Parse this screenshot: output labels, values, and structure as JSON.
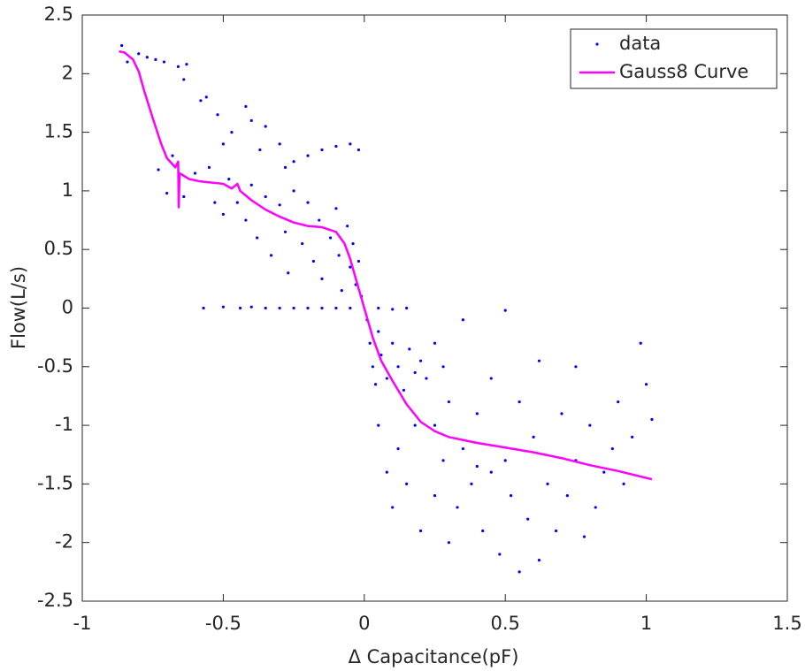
{
  "chart_data": {
    "type": "scatter",
    "xlabel": "Δ Capacitance(pF)",
    "ylabel": "Flow(L/s)",
    "xlim": [
      -1,
      1.5
    ],
    "xticks": [
      -1,
      -0.5,
      0,
      0.5,
      1,
      1.5
    ],
    "ylim": [
      -2.5,
      2.5
    ],
    "yticks": [
      -2.5,
      -2,
      -1.5,
      -1,
      -0.5,
      0,
      0.5,
      1,
      1.5,
      2,
      2.5
    ],
    "legend": "northeast",
    "series": [
      {
        "name": "data",
        "type": "scatter",
        "color": "#0000ff",
        "x": [
          -0.86,
          -0.84,
          -0.8,
          -0.77,
          -0.74,
          -0.71,
          -0.66,
          -0.63,
          -0.64,
          -0.58,
          -0.56,
          -0.52,
          -0.5,
          -0.47,
          -0.42,
          -0.4,
          -0.37,
          -0.35,
          -0.3,
          -0.28,
          -0.25,
          -0.2,
          -0.15,
          -0.1,
          -0.05,
          -0.02,
          -0.73,
          -0.7,
          -0.68,
          -0.64,
          -0.6,
          -0.55,
          -0.53,
          -0.5,
          -0.48,
          -0.45,
          -0.42,
          -0.4,
          -0.38,
          -0.35,
          -0.33,
          -0.3,
          -0.28,
          -0.27,
          -0.25,
          -0.22,
          -0.2,
          -0.18,
          -0.16,
          -0.15,
          -0.12,
          -0.1,
          -0.09,
          -0.08,
          -0.06,
          -0.05,
          -0.04,
          -0.03,
          -0.02,
          -0.01,
          -0.57,
          -0.5,
          -0.44,
          -0.4,
          -0.35,
          -0.3,
          -0.25,
          -0.2,
          -0.15,
          -0.1,
          -0.05,
          0.05,
          0.1,
          0.15,
          0.01,
          0.02,
          0.03,
          0.04,
          0.05,
          0.06,
          0.08,
          0.1,
          0.12,
          0.14,
          0.16,
          0.18,
          0.2,
          0.22,
          0.25,
          0.28,
          0.3,
          0.05,
          0.08,
          0.1,
          0.12,
          0.15,
          0.18,
          0.2,
          0.25,
          0.28,
          0.3,
          0.33,
          0.35,
          0.38,
          0.4,
          0.42,
          0.45,
          0.48,
          0.5,
          0.52,
          0.55,
          0.58,
          0.6,
          0.62,
          0.65,
          0.68,
          0.7,
          0.72,
          0.75,
          0.78,
          0.8,
          0.82,
          0.85,
          0.88,
          0.9,
          0.92,
          0.95,
          0.98,
          1.0,
          1.02,
          0.45,
          0.55,
          0.5,
          0.35,
          0.25,
          0.4,
          0.62,
          0.75
        ],
        "values": [
          2.24,
          2.1,
          2.17,
          2.14,
          2.12,
          2.1,
          2.06,
          2.08,
          1.95,
          1.77,
          1.8,
          1.65,
          1.4,
          1.5,
          1.72,
          1.6,
          1.35,
          1.55,
          1.4,
          1.2,
          1.25,
          1.3,
          1.35,
          1.38,
          1.4,
          1.35,
          1.18,
          0.98,
          1.3,
          0.95,
          1.15,
          1.2,
          0.9,
          0.8,
          1.1,
          0.9,
          0.75,
          1.05,
          0.6,
          0.95,
          0.45,
          0.88,
          0.65,
          0.3,
          1.0,
          0.55,
          0.9,
          0.4,
          0.75,
          0.25,
          0.6,
          0.85,
          0.45,
          0.15,
          0.7,
          0.35,
          0.55,
          0.2,
          0.4,
          0.1,
          0,
          0.01,
          0,
          0.01,
          0,
          0,
          0,
          0,
          0,
          0,
          0,
          0,
          -0.01,
          0,
          -0.1,
          -0.3,
          -0.5,
          -0.65,
          -0.2,
          -0.4,
          -0.6,
          -0.3,
          -0.5,
          -0.7,
          -0.35,
          -0.55,
          -0.45,
          -0.6,
          -0.3,
          -0.5,
          -0.8,
          -1.0,
          -1.4,
          -1.7,
          -1.2,
          -1.5,
          -1.0,
          -1.9,
          -1.6,
          -1.3,
          -2.0,
          -1.7,
          -1.2,
          -1.5,
          -1.35,
          -1.9,
          -1.4,
          -2.1,
          -1.3,
          -1.6,
          -2.25,
          -1.8,
          -1.1,
          -2.15,
          -1.5,
          -1.9,
          -0.9,
          -1.6,
          -1.3,
          -1.95,
          -1.0,
          -1.7,
          -1.4,
          -1.2,
          -0.8,
          -1.5,
          -1.1,
          -0.3,
          -0.65,
          -0.95,
          -0.6,
          -0.8,
          -0.02,
          -0.1,
          -1.0,
          -0.9,
          -0.45,
          -0.5
        ]
      },
      {
        "name": "Gauss8 Curve",
        "type": "line",
        "color": "#ff00ff",
        "x": [
          -0.87,
          -0.85,
          -0.82,
          -0.8,
          -0.78,
          -0.75,
          -0.72,
          -0.7,
          -0.67,
          -0.66,
          -0.658,
          -0.655,
          -0.62,
          -0.58,
          -0.5,
          -0.47,
          -0.45,
          -0.44,
          -0.4,
          -0.35,
          -0.3,
          -0.25,
          -0.2,
          -0.15,
          -0.1,
          -0.07,
          -0.05,
          -0.03,
          0,
          0.03,
          0.06,
          0.1,
          0.15,
          0.2,
          0.25,
          0.3,
          0.4,
          0.5,
          0.6,
          0.7,
          0.8,
          0.9,
          1.02
        ],
        "values": [
          2.19,
          2.18,
          2.12,
          2.02,
          1.85,
          1.62,
          1.4,
          1.28,
          1.2,
          1.25,
          0.86,
          1.15,
          1.1,
          1.08,
          1.06,
          1.02,
          1.06,
          1.0,
          0.92,
          0.84,
          0.78,
          0.73,
          0.7,
          0.69,
          0.65,
          0.55,
          0.42,
          0.25,
          0,
          -0.25,
          -0.45,
          -0.62,
          -0.82,
          -0.97,
          -1.05,
          -1.1,
          -1.15,
          -1.19,
          -1.23,
          -1.28,
          -1.34,
          -1.39,
          -1.46
        ]
      }
    ]
  }
}
